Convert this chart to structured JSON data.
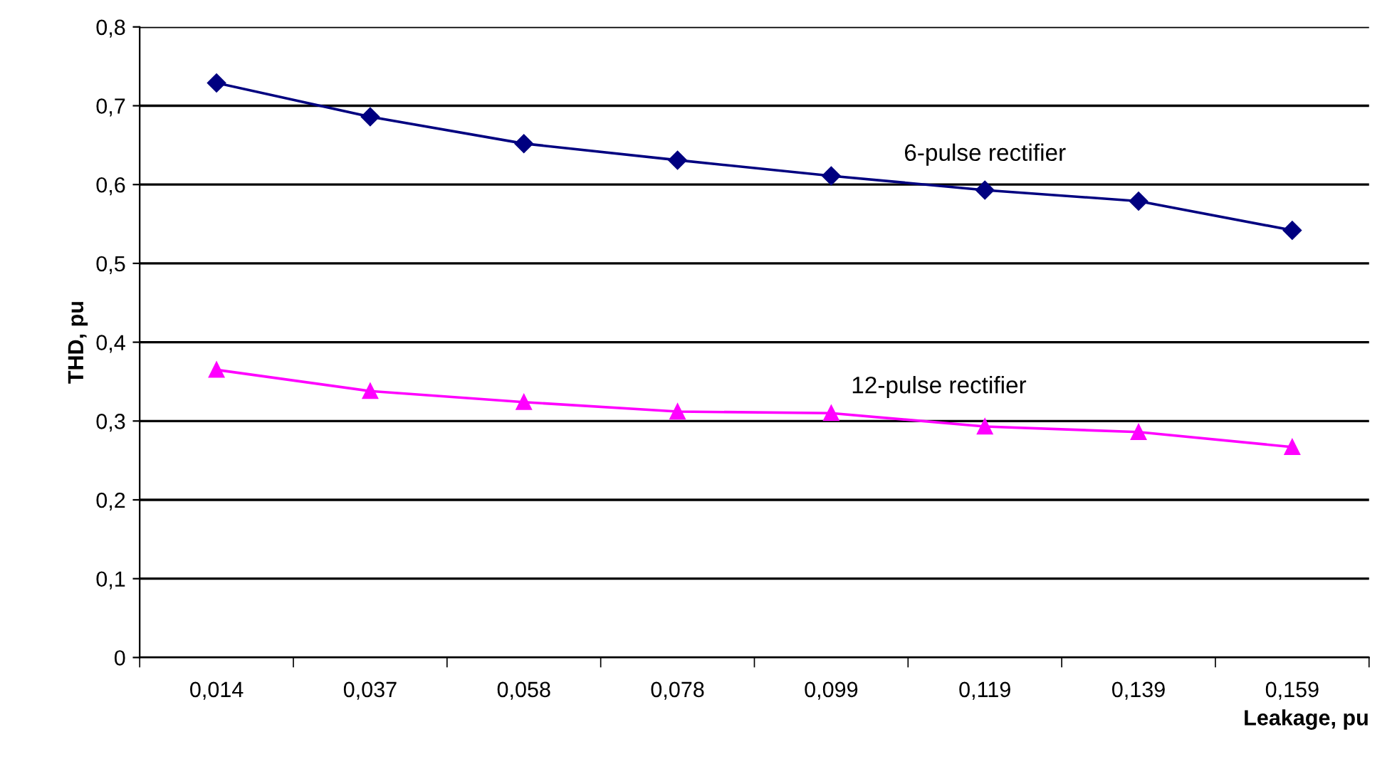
{
  "chart_data": {
    "type": "line",
    "xlabel": "Leakage, pu",
    "ylabel": "THD, pu",
    "categories": [
      "0,014",
      "0,037",
      "0,058",
      "0,078",
      "0,099",
      "0,119",
      "0,139",
      "0,159"
    ],
    "series": [
      {
        "name": "6-pulse rectifier",
        "color": "#000080",
        "marker": "diamond",
        "values": [
          0.729,
          0.686,
          0.652,
          0.631,
          0.611,
          0.593,
          0.579,
          0.542
        ]
      },
      {
        "name": "12-pulse rectifier",
        "color": "#ff00ff",
        "marker": "triangle",
        "values": [
          0.365,
          0.338,
          0.324,
          0.312,
          0.31,
          0.293,
          0.286,
          0.267
        ]
      }
    ],
    "ylim": [
      0,
      0.8
    ],
    "yticks": [
      {
        "value": 0,
        "label": "0"
      },
      {
        "value": 0.1,
        "label": "0,1"
      },
      {
        "value": 0.2,
        "label": "0,2"
      },
      {
        "value": 0.3,
        "label": "0,3"
      },
      {
        "value": 0.4,
        "label": "0,4"
      },
      {
        "value": 0.5,
        "label": "0,5"
      },
      {
        "value": 0.6,
        "label": "0,6"
      },
      {
        "value": 0.7,
        "label": "0,7"
      },
      {
        "value": 0.8,
        "label": "0,8"
      }
    ],
    "grid": "y",
    "legend": false
  }
}
